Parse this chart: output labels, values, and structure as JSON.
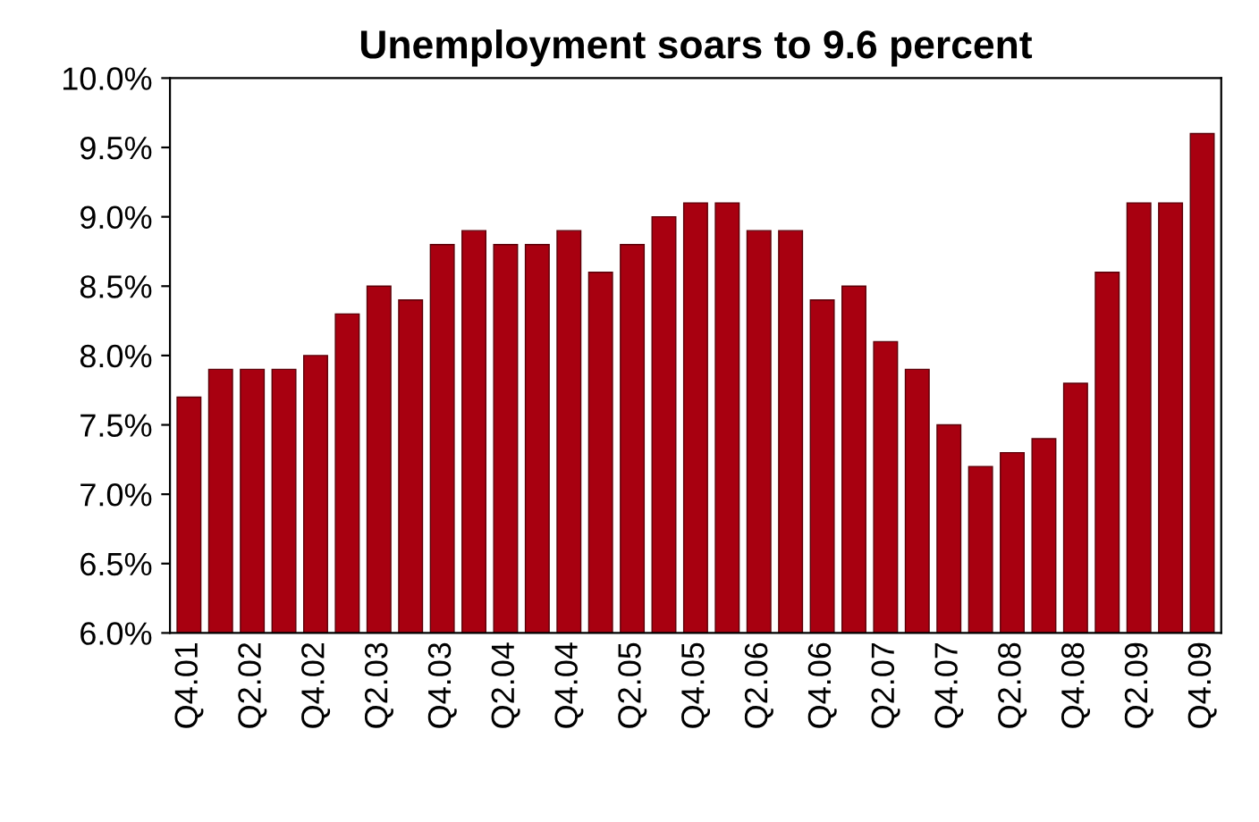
{
  "chart_data": {
    "type": "bar",
    "title": "Unemployment soars to 9.6 percent",
    "categories": [
      "Q4.01",
      null,
      "Q2.02",
      null,
      "Q4.02",
      null,
      "Q2.03",
      null,
      "Q4.03",
      null,
      "Q2.04",
      null,
      "Q4.04",
      null,
      "Q2.05",
      null,
      "Q4.05",
      null,
      "Q2.06",
      null,
      "Q4.06",
      null,
      "Q2.07",
      null,
      "Q4.07",
      null,
      "Q2.08",
      null,
      "Q4.08",
      null,
      "Q2.09",
      null,
      "Q4.09"
    ],
    "values": [
      7.7,
      7.9,
      7.9,
      7.9,
      8.0,
      8.3,
      8.5,
      8.4,
      8.8,
      8.9,
      8.8,
      8.8,
      8.9,
      8.6,
      8.8,
      9.0,
      9.1,
      9.1,
      8.9,
      8.9,
      8.4,
      8.5,
      8.1,
      7.9,
      7.5,
      7.2,
      7.3,
      7.4,
      7.8,
      8.6,
      9.1,
      9.1,
      9.6
    ],
    "color": "#a80010",
    "ylim": [
      6.0,
      10.0
    ],
    "yticks": [
      {
        "value": 6.0,
        "label": "6.0%"
      },
      {
        "value": 6.5,
        "label": "6.5%"
      },
      {
        "value": 7.0,
        "label": "7.0%"
      },
      {
        "value": 7.5,
        "label": "7.5%"
      },
      {
        "value": 8.0,
        "label": "8.0%"
      },
      {
        "value": 8.5,
        "label": "8.5%"
      },
      {
        "value": 9.0,
        "label": "9.0%"
      },
      {
        "value": 9.5,
        "label": "9.5%"
      },
      {
        "value": 10.0,
        "label": "10.0%"
      }
    ],
    "grid": false
  }
}
